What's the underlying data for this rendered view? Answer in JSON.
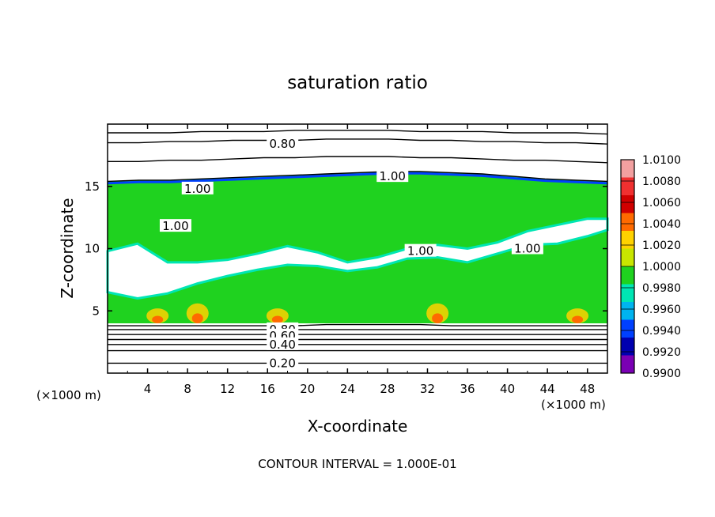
{
  "chart_data": {
    "type": "heatmap",
    "title": "saturation ratio",
    "xlabel": "X-coordinate",
    "ylabel": "Z-coordinate",
    "x_unit": "(×1000 m)",
    "y_unit": "(×1000 m)",
    "xlim": [
      0,
      50
    ],
    "ylim": [
      0,
      20
    ],
    "x_ticks": [
      4,
      8,
      12,
      16,
      20,
      24,
      28,
      32,
      36,
      40,
      44,
      48
    ],
    "y_ticks": [
      5,
      10,
      15
    ],
    "contour_interval_note": "CONTOUR INTERVAL = 1.000E-01",
    "colorbar": {
      "levels": [
        "1.0100",
        "1.0080",
        "1.0060",
        "1.0040",
        "1.0020",
        "1.0000",
        "0.9980",
        "0.9960",
        "0.9940",
        "0.9920",
        "0.9900"
      ],
      "colors": [
        "#f2a0a0",
        "#f03030",
        "#d00000",
        "#ff6a00",
        "#ffd200",
        "#c8e600",
        "#1fd21f",
        "#00e6b4",
        "#00b4f0",
        "#0040ff",
        "#0000b0",
        "#7a00b4"
      ]
    },
    "contour_labels": [
      {
        "text": "0.80",
        "x": 17.5,
        "y": 18.4
      },
      {
        "text": "1.00",
        "x": 28.5,
        "y": 15.8
      },
      {
        "text": "1.00",
        "x": 9.0,
        "y": 14.8
      },
      {
        "text": "1.00",
        "x": 6.8,
        "y": 11.8
      },
      {
        "text": "1.00",
        "x": 31.3,
        "y": 9.8
      },
      {
        "text": "1.00",
        "x": 42.0,
        "y": 10.0
      },
      {
        "text": "0.80",
        "x": 17.5,
        "y": 3.5
      },
      {
        "text": "0.60",
        "x": 17.5,
        "y": 3.0
      },
      {
        "text": "0.40",
        "x": 17.5,
        "y": 2.3
      },
      {
        "text": "0.20",
        "x": 17.5,
        "y": 0.8
      }
    ],
    "contour_lines": [
      {
        "level": "1.00",
        "y": [
          15.4,
          15.5,
          15.5,
          15.6,
          15.7,
          15.8,
          15.9,
          16.0,
          16.1,
          16.2,
          16.2,
          16.1,
          16.0,
          15.8,
          15.6,
          15.5,
          15.4
        ]
      },
      {
        "level": "0.80",
        "y": [
          18.5,
          18.5,
          18.6,
          18.6,
          18.7,
          18.7,
          18.7,
          18.8,
          18.8,
          18.8,
          18.7,
          18.7,
          18.6,
          18.6,
          18.5,
          18.5,
          18.4
        ]
      },
      {
        "level": "0.90",
        "y": [
          17.0,
          17.0,
          17.1,
          17.1,
          17.2,
          17.3,
          17.3,
          17.4,
          17.4,
          17.4,
          17.3,
          17.3,
          17.2,
          17.1,
          17.1,
          17.0,
          16.9
        ]
      },
      {
        "level": "0.70",
        "y": [
          19.3,
          19.3,
          19.3,
          19.4,
          19.4,
          19.4,
          19.5,
          19.5,
          19.5,
          19.5,
          19.4,
          19.4,
          19.4,
          19.3,
          19.3,
          19.3,
          19.2
        ]
      },
      {
        "level": "0.80",
        "y": [
          3.8,
          3.8,
          3.8,
          3.8,
          3.8,
          3.8,
          3.8,
          3.9,
          3.9,
          3.9,
          3.9,
          3.8,
          3.8,
          3.8,
          3.8,
          3.8,
          3.8
        ]
      },
      {
        "level": "0.70",
        "y": [
          3.5,
          3.5,
          3.5,
          3.5,
          3.5,
          3.5,
          3.5,
          3.5,
          3.5,
          3.5,
          3.5,
          3.5,
          3.5,
          3.5,
          3.5,
          3.5,
          3.5
        ]
      },
      {
        "level": "0.60",
        "y": [
          3.1,
          3.1,
          3.1,
          3.1,
          3.1,
          3.1,
          3.1,
          3.1,
          3.1,
          3.1,
          3.1,
          3.1,
          3.1,
          3.1,
          3.1,
          3.1,
          3.1
        ]
      },
      {
        "level": "0.50",
        "y": [
          2.7,
          2.7,
          2.7,
          2.7,
          2.7,
          2.7,
          2.7,
          2.7,
          2.7,
          2.7,
          2.7,
          2.7,
          2.7,
          2.7,
          2.7,
          2.7,
          2.7
        ]
      },
      {
        "level": "0.40",
        "y": [
          2.3,
          2.3,
          2.3,
          2.3,
          2.3,
          2.3,
          2.3,
          2.3,
          2.3,
          2.3,
          2.3,
          2.3,
          2.3,
          2.3,
          2.3,
          2.3,
          2.3
        ]
      },
      {
        "level": "0.30",
        "y": [
          1.8,
          1.8,
          1.8,
          1.8,
          1.8,
          1.8,
          1.8,
          1.8,
          1.8,
          1.8,
          1.8,
          1.8,
          1.8,
          1.8,
          1.8,
          1.8,
          1.8
        ]
      },
      {
        "level": "0.20",
        "y": [
          0.8,
          0.8,
          0.8,
          0.8,
          0.8,
          0.8,
          0.8,
          0.8,
          0.8,
          0.8,
          0.8,
          0.8,
          0.8,
          0.8,
          0.8,
          0.8,
          0.8
        ]
      }
    ],
    "saturated_layer": {
      "base_y": 4.0,
      "top_y": [
        15.4,
        15.5,
        15.5,
        15.6,
        15.7,
        15.8,
        15.9,
        16.0,
        16.1,
        16.2,
        16.2,
        16.1,
        16.0,
        15.8,
        15.6,
        15.5,
        15.4
      ]
    },
    "subsaturated_band": {
      "x": [
        0,
        3,
        6,
        9,
        12,
        15,
        18,
        21,
        24,
        27,
        30,
        33,
        36,
        39,
        42,
        45,
        48,
        50
      ],
      "lower": [
        6.5,
        6.0,
        6.4,
        7.2,
        7.8,
        8.3,
        8.7,
        8.6,
        8.2,
        8.5,
        9.2,
        9.3,
        8.9,
        9.6,
        10.3,
        10.4,
        11.0,
        11.5
      ],
      "upper": [
        9.8,
        10.4,
        8.9,
        8.9,
        9.1,
        9.6,
        10.2,
        9.7,
        8.9,
        9.3,
        10.0,
        10.3,
        10.0,
        10.5,
        11.4,
        11.9,
        12.4,
        12.4
      ]
    }
  }
}
